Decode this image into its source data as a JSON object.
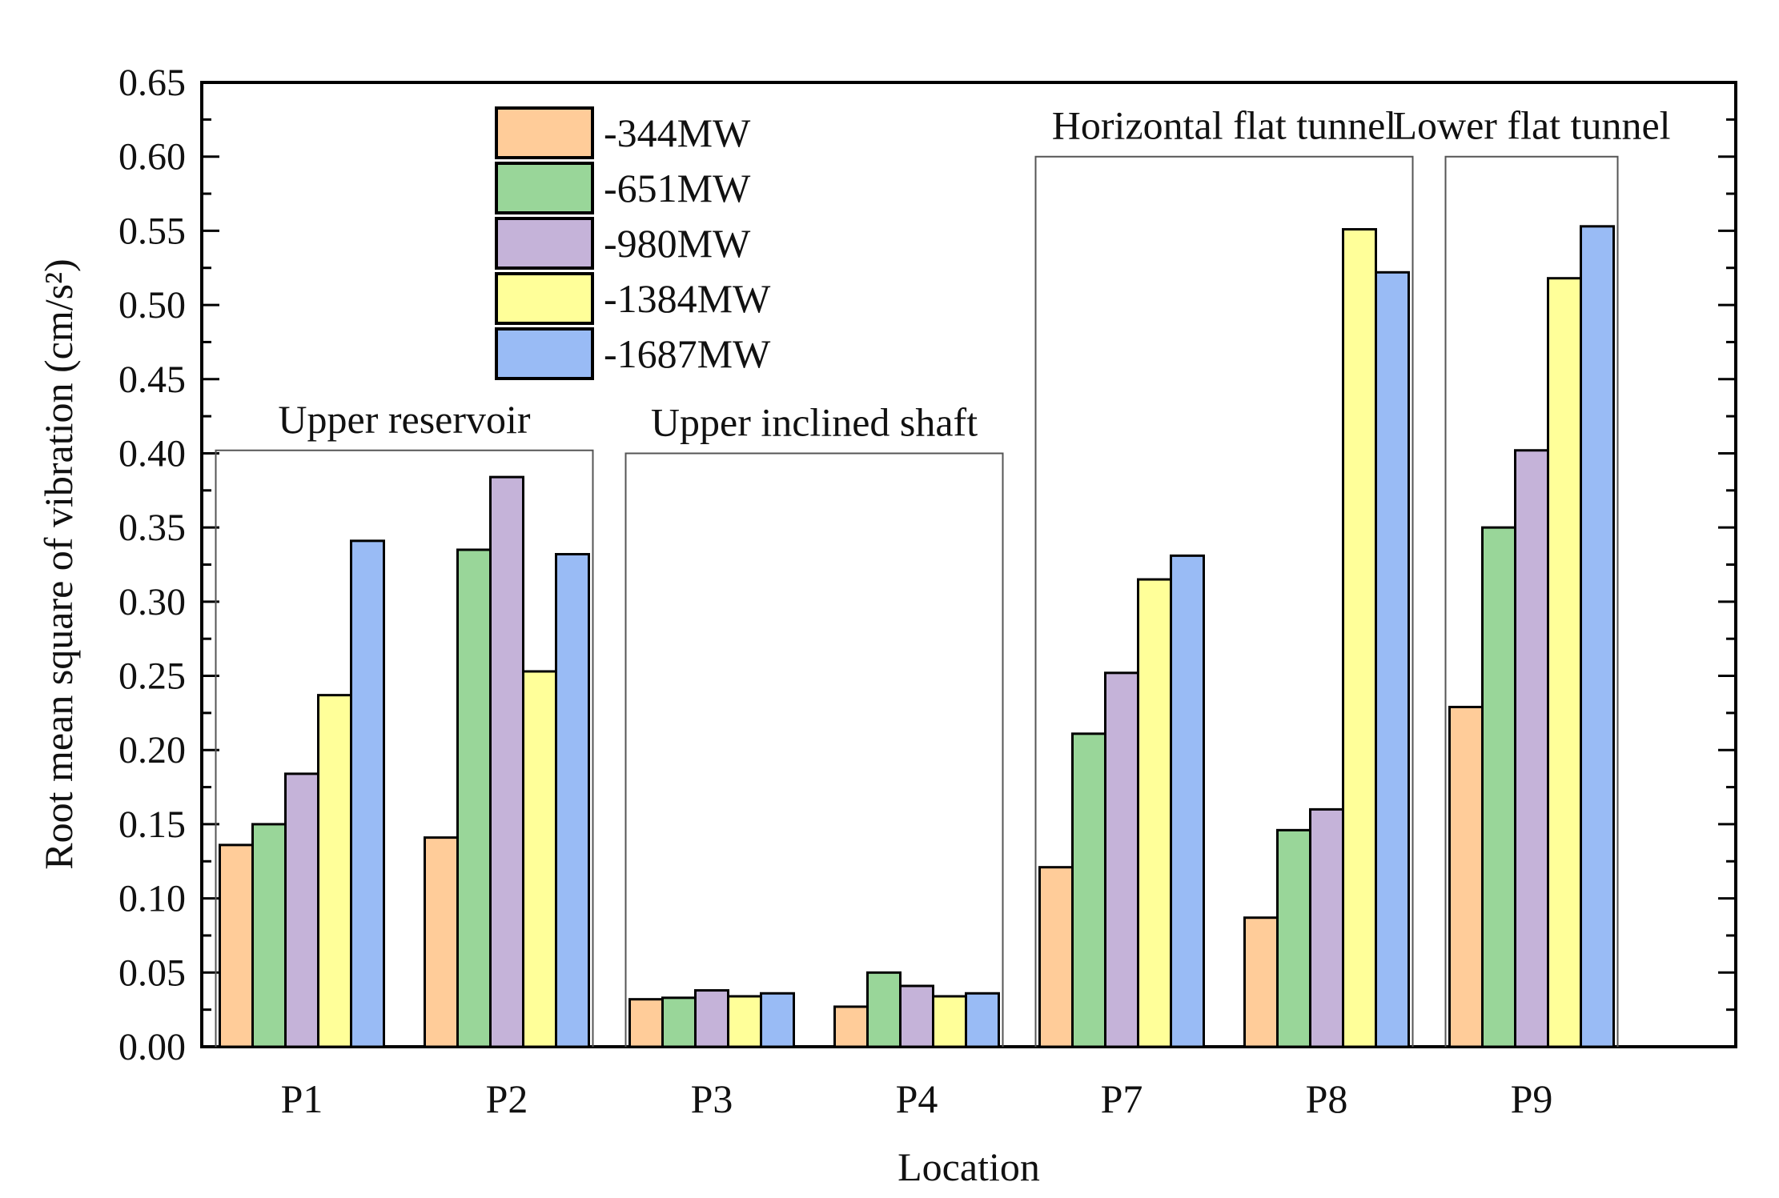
{
  "chart_data": {
    "type": "bar",
    "title": "",
    "xlabel": "Location",
    "ylabel": "Root mean square of vibration (cm/s²)",
    "ylim": [
      0,
      0.65
    ],
    "yticks": [
      "0.00",
      "0.05",
      "0.10",
      "0.15",
      "0.20",
      "0.25",
      "0.30",
      "0.35",
      "0.40",
      "0.45",
      "0.50",
      "0.55",
      "0.60",
      "0.65"
    ],
    "categories": [
      "P1",
      "P2",
      "P3",
      "P4",
      "P7",
      "P8",
      "P9"
    ],
    "series": [
      {
        "name": "-344MW",
        "color": "#FFCC99",
        "values": [
          0.136,
          0.141,
          0.032,
          0.027,
          0.121,
          0.087,
          0.229
        ]
      },
      {
        "name": "-651MW",
        "color": "#99D699",
        "values": [
          0.15,
          0.335,
          0.033,
          0.05,
          0.211,
          0.146,
          0.35
        ]
      },
      {
        "name": "-980MW",
        "color": "#C5B3D9",
        "values": [
          0.184,
          0.384,
          0.038,
          0.041,
          0.252,
          0.16,
          0.402
        ]
      },
      {
        "name": "-1384MW",
        "color": "#FFFF99",
        "values": [
          0.237,
          0.253,
          0.034,
          0.034,
          0.315,
          0.551,
          0.518
        ]
      },
      {
        "name": "-1687MW",
        "color": "#99BBF5",
        "values": [
          0.341,
          0.332,
          0.036,
          0.036,
          0.331,
          0.522,
          0.553
        ]
      }
    ],
    "legend_position": "top-left",
    "group_annotations": [
      {
        "label": "Upper reservoir",
        "categories": [
          "P1",
          "P2"
        ],
        "top_value": 0.402
      },
      {
        "label": "Upper inclined shaft",
        "categories": [
          "P3",
          "P4"
        ],
        "top_value": 0.4
      },
      {
        "label": "Horizontal flat tunnel",
        "categories": [
          "P7",
          "P8"
        ],
        "top_value": 0.6
      },
      {
        "label": "Lower flat tunnel",
        "categories": [
          "P9"
        ],
        "top_value": 0.6
      }
    ]
  }
}
